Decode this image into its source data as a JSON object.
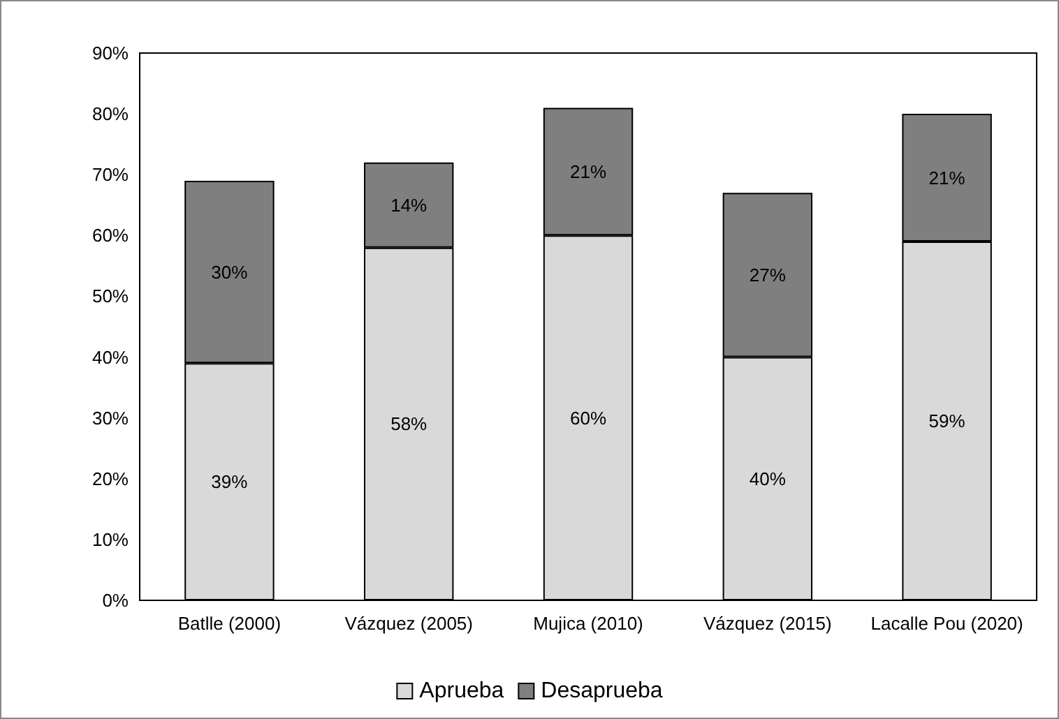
{
  "chart_data": {
    "type": "bar",
    "stacked": true,
    "categories": [
      "Batlle (2000)",
      "Vázquez (2005)",
      "Mujica (2010)",
      "Vázquez (2015)",
      "Lacalle Pou (2020)"
    ],
    "series": [
      {
        "name": "Aprueba",
        "color": "#d9d9d9",
        "values": [
          39,
          58,
          60,
          40,
          59
        ],
        "value_labels": [
          "39%",
          "58%",
          "60%",
          "40%",
          "59%"
        ]
      },
      {
        "name": "Desaprueba",
        "color": "#7f7f7f",
        "values": [
          30,
          14,
          21,
          27,
          21
        ],
        "value_labels": [
          "30%",
          "14%",
          "21%",
          "27%",
          "21%"
        ]
      }
    ],
    "ylim": [
      0,
      90
    ],
    "yticks": [
      {
        "value": 0,
        "label": "0%"
      },
      {
        "value": 10,
        "label": "10%"
      },
      {
        "value": 20,
        "label": "20%"
      },
      {
        "value": 30,
        "label": "30%"
      },
      {
        "value": 40,
        "label": "40%"
      },
      {
        "value": 50,
        "label": "50%"
      },
      {
        "value": 60,
        "label": "60%"
      },
      {
        "value": 70,
        "label": "70%"
      },
      {
        "value": 80,
        "label": "80%"
      },
      {
        "value": 90,
        "label": "90%"
      }
    ],
    "grid": false,
    "legend": "bottom"
  }
}
